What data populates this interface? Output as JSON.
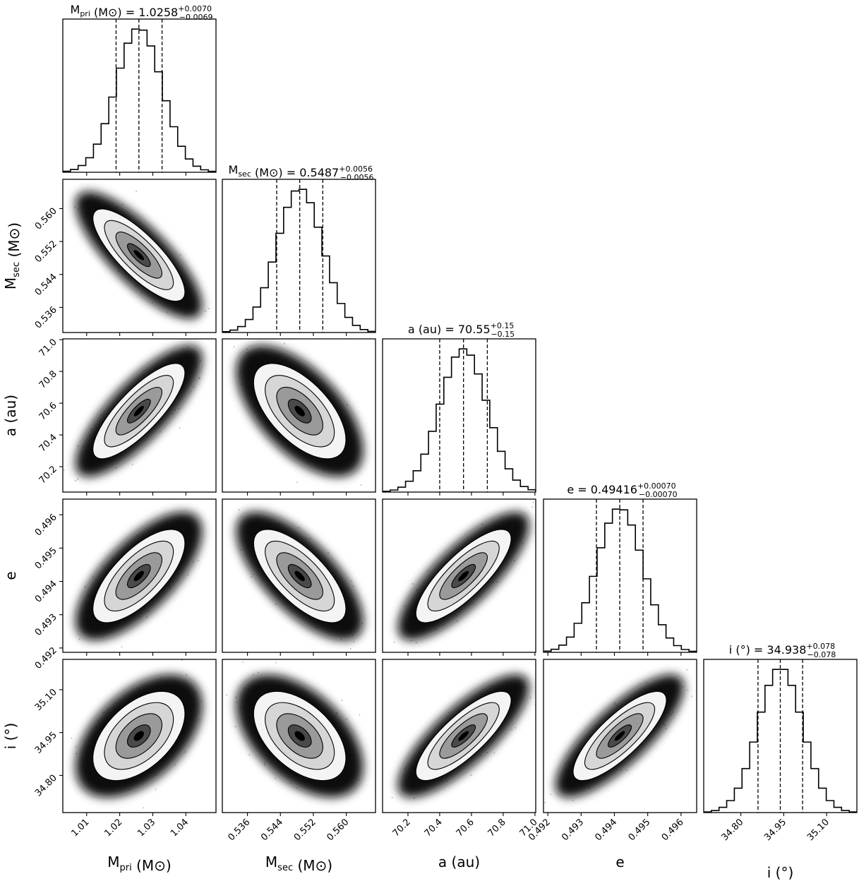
{
  "chart_data": {
    "type": "corner",
    "grid": false,
    "params": [
      {
        "symbol": "M",
        "sub": "pri",
        "unit": "(M⊙)",
        "median": "1.0258",
        "plus": "+0.0070",
        "minus": "−0.0069",
        "range": [
          1.0028,
          1.0491
        ],
        "ticks": [
          "1.01",
          "1.02",
          "1.03",
          "1.04"
        ]
      },
      {
        "symbol": "M",
        "sub": "sec",
        "unit": "(M⊙)",
        "median": "0.5487",
        "plus": "+0.0056",
        "minus": "−0.0056",
        "range": [
          0.5299,
          0.5671
        ],
        "ticks": [
          "0.536",
          "0.544",
          "0.552",
          "0.560"
        ]
      },
      {
        "symbol": "a",
        "sub": "",
        "unit": "(au)",
        "median": "70.55",
        "plus": "+0.15",
        "minus": "−0.15",
        "range": [
          70.04,
          71.005
        ],
        "ticks": [
          "70.2",
          "70.4",
          "70.6",
          "70.8",
          "71.0"
        ]
      },
      {
        "symbol": "e",
        "sub": "",
        "unit": "",
        "median": "0.49416",
        "plus": "+0.00070",
        "minus": "−0.00070",
        "range": [
          0.49187,
          0.49647
        ],
        "ticks": [
          "0.492",
          "0.493",
          "0.494",
          "0.495",
          "0.496"
        ]
      },
      {
        "symbol": "i",
        "sub": "",
        "unit": "(°)",
        "median": "34.938",
        "plus": "+0.078",
        "minus": "−0.078",
        "range": [
          34.67,
          35.206
        ],
        "ticks": [
          "34.80",
          "34.95",
          "35.10"
        ]
      }
    ],
    "correlations": [
      [
        1.0,
        -0.8,
        0.8,
        0.7,
        0.5
      ],
      [
        -0.8,
        1.0,
        -0.6,
        -0.7,
        -0.5
      ],
      [
        0.8,
        -0.6,
        1.0,
        0.8,
        0.8
      ],
      [
        0.7,
        -0.7,
        0.8,
        1.0,
        0.8
      ],
      [
        0.5,
        -0.5,
        0.8,
        0.8,
        1.0
      ]
    ],
    "quantiles": [
      0.16,
      0.5,
      0.84
    ],
    "contour_levels_sigma": [
      0.5,
      1.0,
      1.5,
      2.0
    ],
    "colors": {
      "ink": "#000000",
      "background": "#ffffff"
    }
  }
}
